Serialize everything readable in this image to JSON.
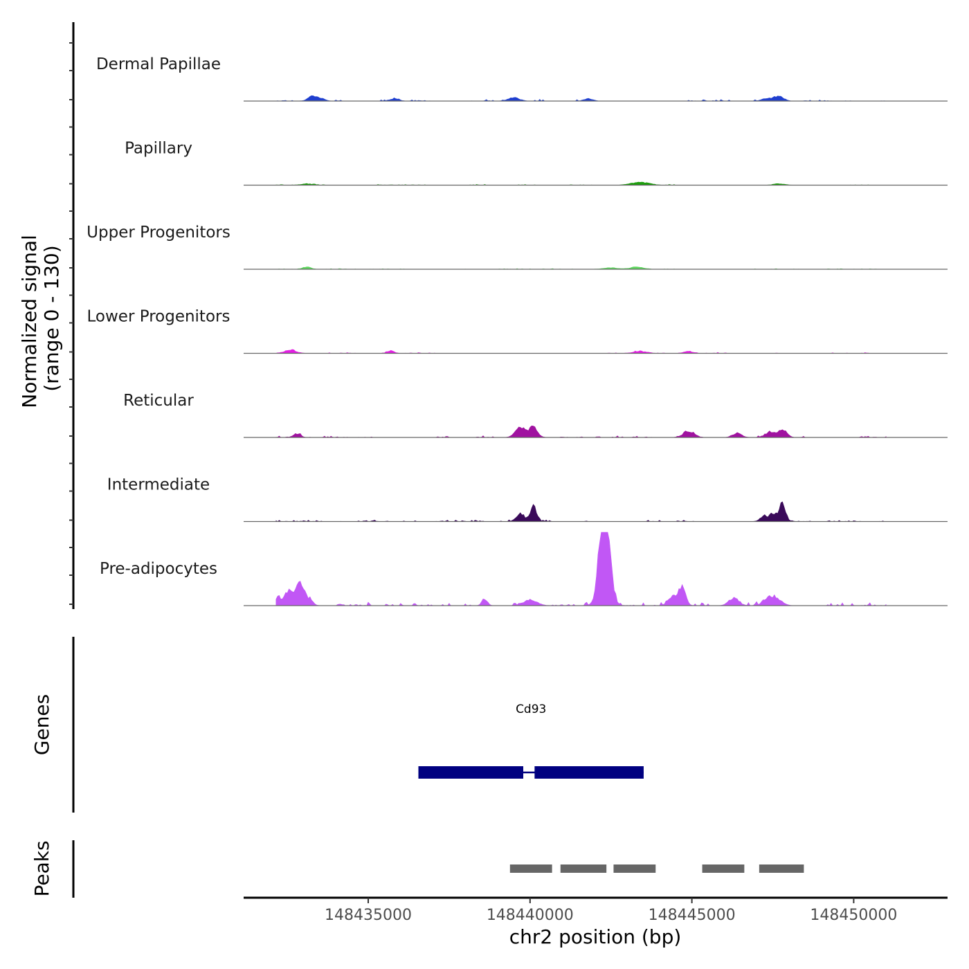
{
  "chart_data": {
    "type": "area",
    "title": "",
    "xlabel": "chr2 position (bp)",
    "ylabel_line1": "Normalized signal",
    "ylabel_line2": "(range 0 - 130)",
    "y_range": [
      0,
      130
    ],
    "xlim": [
      148431150,
      148452900
    ],
    "x_ticks": [
      148435000,
      148440000,
      148445000,
      148450000
    ],
    "x_tick_labels": [
      "148435000",
      "148440000",
      "148445000",
      "148450000"
    ],
    "signal_start": 148432150,
    "signal_end": 148451000,
    "bin_size": 50,
    "tracks": [
      {
        "name": "Dermal Papillae",
        "color": "#1f3fcf",
        "peaks": [
          {
            "center": 148433250,
            "height": 9,
            "width": 180
          },
          {
            "center": 148433500,
            "height": 6,
            "width": 200
          },
          {
            "center": 148435800,
            "height": 5,
            "width": 200
          },
          {
            "center": 148439500,
            "height": 7,
            "width": 250
          },
          {
            "center": 148441800,
            "height": 5,
            "width": 200
          },
          {
            "center": 148447700,
            "height": 10,
            "width": 200
          },
          {
            "center": 148447300,
            "height": 6,
            "width": 200
          }
        ],
        "noise": 3.2,
        "density": 0.55,
        "seed": 11
      },
      {
        "name": "Papillary",
        "color": "#1e9e0e",
        "peaks": [
          {
            "center": 148433100,
            "height": 3,
            "width": 250
          },
          {
            "center": 148443400,
            "height": 6,
            "width": 400
          },
          {
            "center": 148447700,
            "height": 3,
            "width": 250
          }
        ],
        "noise": 1.6,
        "density": 0.85,
        "seed": 23
      },
      {
        "name": "Upper Progenitors",
        "color": "#5fd65f",
        "peaks": [
          {
            "center": 148433100,
            "height": 5,
            "width": 180
          },
          {
            "center": 148443300,
            "height": 5,
            "width": 300
          },
          {
            "center": 148442500,
            "height": 3,
            "width": 300
          }
        ],
        "noise": 1.3,
        "density": 0.6,
        "seed": 37
      },
      {
        "name": "Lower Progenitors",
        "color": "#e21fe2",
        "peaks": [
          {
            "center": 148432600,
            "height": 7,
            "width": 250
          },
          {
            "center": 148435700,
            "height": 5,
            "width": 150
          },
          {
            "center": 148443400,
            "height": 4,
            "width": 300
          },
          {
            "center": 148444900,
            "height": 4,
            "width": 200
          }
        ],
        "noise": 1.8,
        "density": 0.6,
        "seed": 51
      },
      {
        "name": "Reticular",
        "color": "#a012a0",
        "peaks": [
          {
            "center": 148432800,
            "height": 8,
            "width": 150
          },
          {
            "center": 148439700,
            "height": 20,
            "width": 220
          },
          {
            "center": 148440100,
            "height": 22,
            "width": 180
          },
          {
            "center": 148444900,
            "height": 12,
            "width": 250
          },
          {
            "center": 148446400,
            "height": 9,
            "width": 200
          },
          {
            "center": 148447400,
            "height": 11,
            "width": 200
          },
          {
            "center": 148447800,
            "height": 17,
            "width": 180
          }
        ],
        "noise": 3.2,
        "density": 0.6,
        "seed": 67
      },
      {
        "name": "Intermediate",
        "color": "#3a0a5a",
        "peaks": [
          {
            "center": 148439700,
            "height": 18,
            "width": 160
          },
          {
            "center": 148440100,
            "height": 33,
            "width": 140
          },
          {
            "center": 148447500,
            "height": 15,
            "width": 180
          },
          {
            "center": 148447800,
            "height": 37,
            "width": 140
          },
          {
            "center": 148447200,
            "height": 9,
            "width": 160
          }
        ],
        "noise": 3.0,
        "density": 0.6,
        "seed": 79
      },
      {
        "name": "Pre-adipocytes",
        "color": "#c157f5",
        "peaks": [
          {
            "center": 148432200,
            "height": 18,
            "width": 120
          },
          {
            "center": 148432550,
            "height": 32,
            "width": 180
          },
          {
            "center": 148432900,
            "height": 48,
            "width": 160
          },
          {
            "center": 148433150,
            "height": 12,
            "width": 180
          },
          {
            "center": 148442200,
            "height": 90,
            "width": 150
          },
          {
            "center": 148442400,
            "height": 100,
            "width": 140
          },
          {
            "center": 148442300,
            "height": 70,
            "width": 260
          },
          {
            "center": 148444700,
            "height": 40,
            "width": 150
          },
          {
            "center": 148444400,
            "height": 18,
            "width": 200
          },
          {
            "center": 148447500,
            "height": 20,
            "width": 300
          },
          {
            "center": 148446300,
            "height": 16,
            "width": 220
          },
          {
            "center": 148438600,
            "height": 15,
            "width": 120
          },
          {
            "center": 148440000,
            "height": 12,
            "width": 300
          }
        ],
        "noise": 8.0,
        "density": 0.45,
        "seed": 97
      }
    ],
    "genes_panel_label": "Genes",
    "genes": [
      {
        "name": "Cd93",
        "color": "#000080",
        "start": 148436550,
        "end": 148443510,
        "exons": [
          [
            148436550,
            148439790
          ],
          [
            148440140,
            148443510
          ]
        ]
      }
    ],
    "peaks_panel_label": "Peaks",
    "peak_color": "#666666",
    "peak_regions": [
      [
        148439380,
        148440680
      ],
      [
        148440940,
        148442360
      ],
      [
        148442580,
        148443880
      ],
      [
        148445320,
        148446620
      ],
      [
        148447080,
        148448460
      ]
    ]
  }
}
